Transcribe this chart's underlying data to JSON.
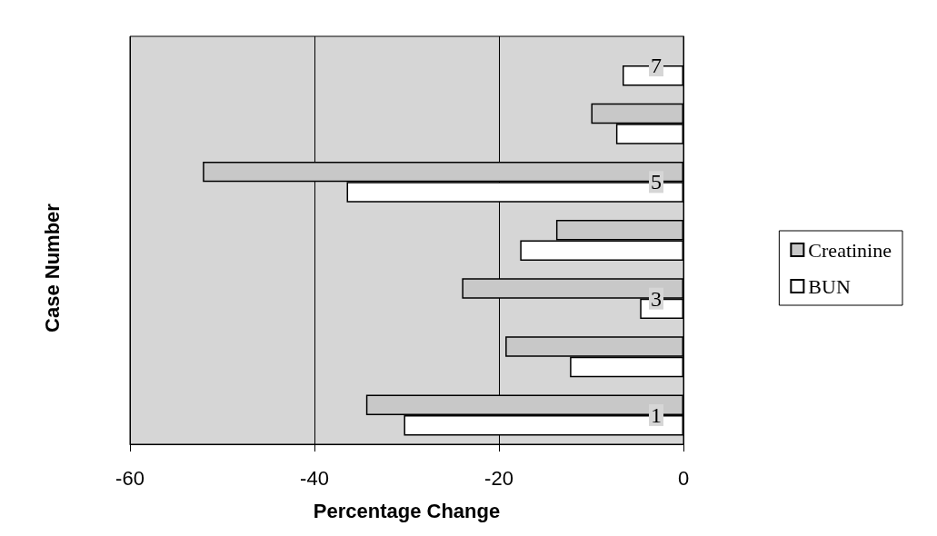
{
  "chart_data": {
    "type": "bar",
    "orientation": "horizontal",
    "xlabel": "Percentage Change",
    "ylabel": "Case Number",
    "categories": [
      "7",
      null,
      "5",
      null,
      "3",
      null,
      "1"
    ],
    "series": [
      {
        "name": "Creatinine",
        "color": "#c8c8c8",
        "values": [
          null,
          -10.0,
          -52.1,
          -13.8,
          -24.0,
          -19.3,
          -34.4
        ]
      },
      {
        "name": "BUN",
        "color": "#ffffff",
        "values": [
          -6.6,
          -7.3,
          -36.5,
          -17.7,
          -4.7,
          -12.3,
          -30.3
        ]
      }
    ],
    "xlim": [
      -60,
      0
    ],
    "xticks": [
      -60,
      -40,
      -20,
      0
    ],
    "grid": "x",
    "legend": "right"
  }
}
